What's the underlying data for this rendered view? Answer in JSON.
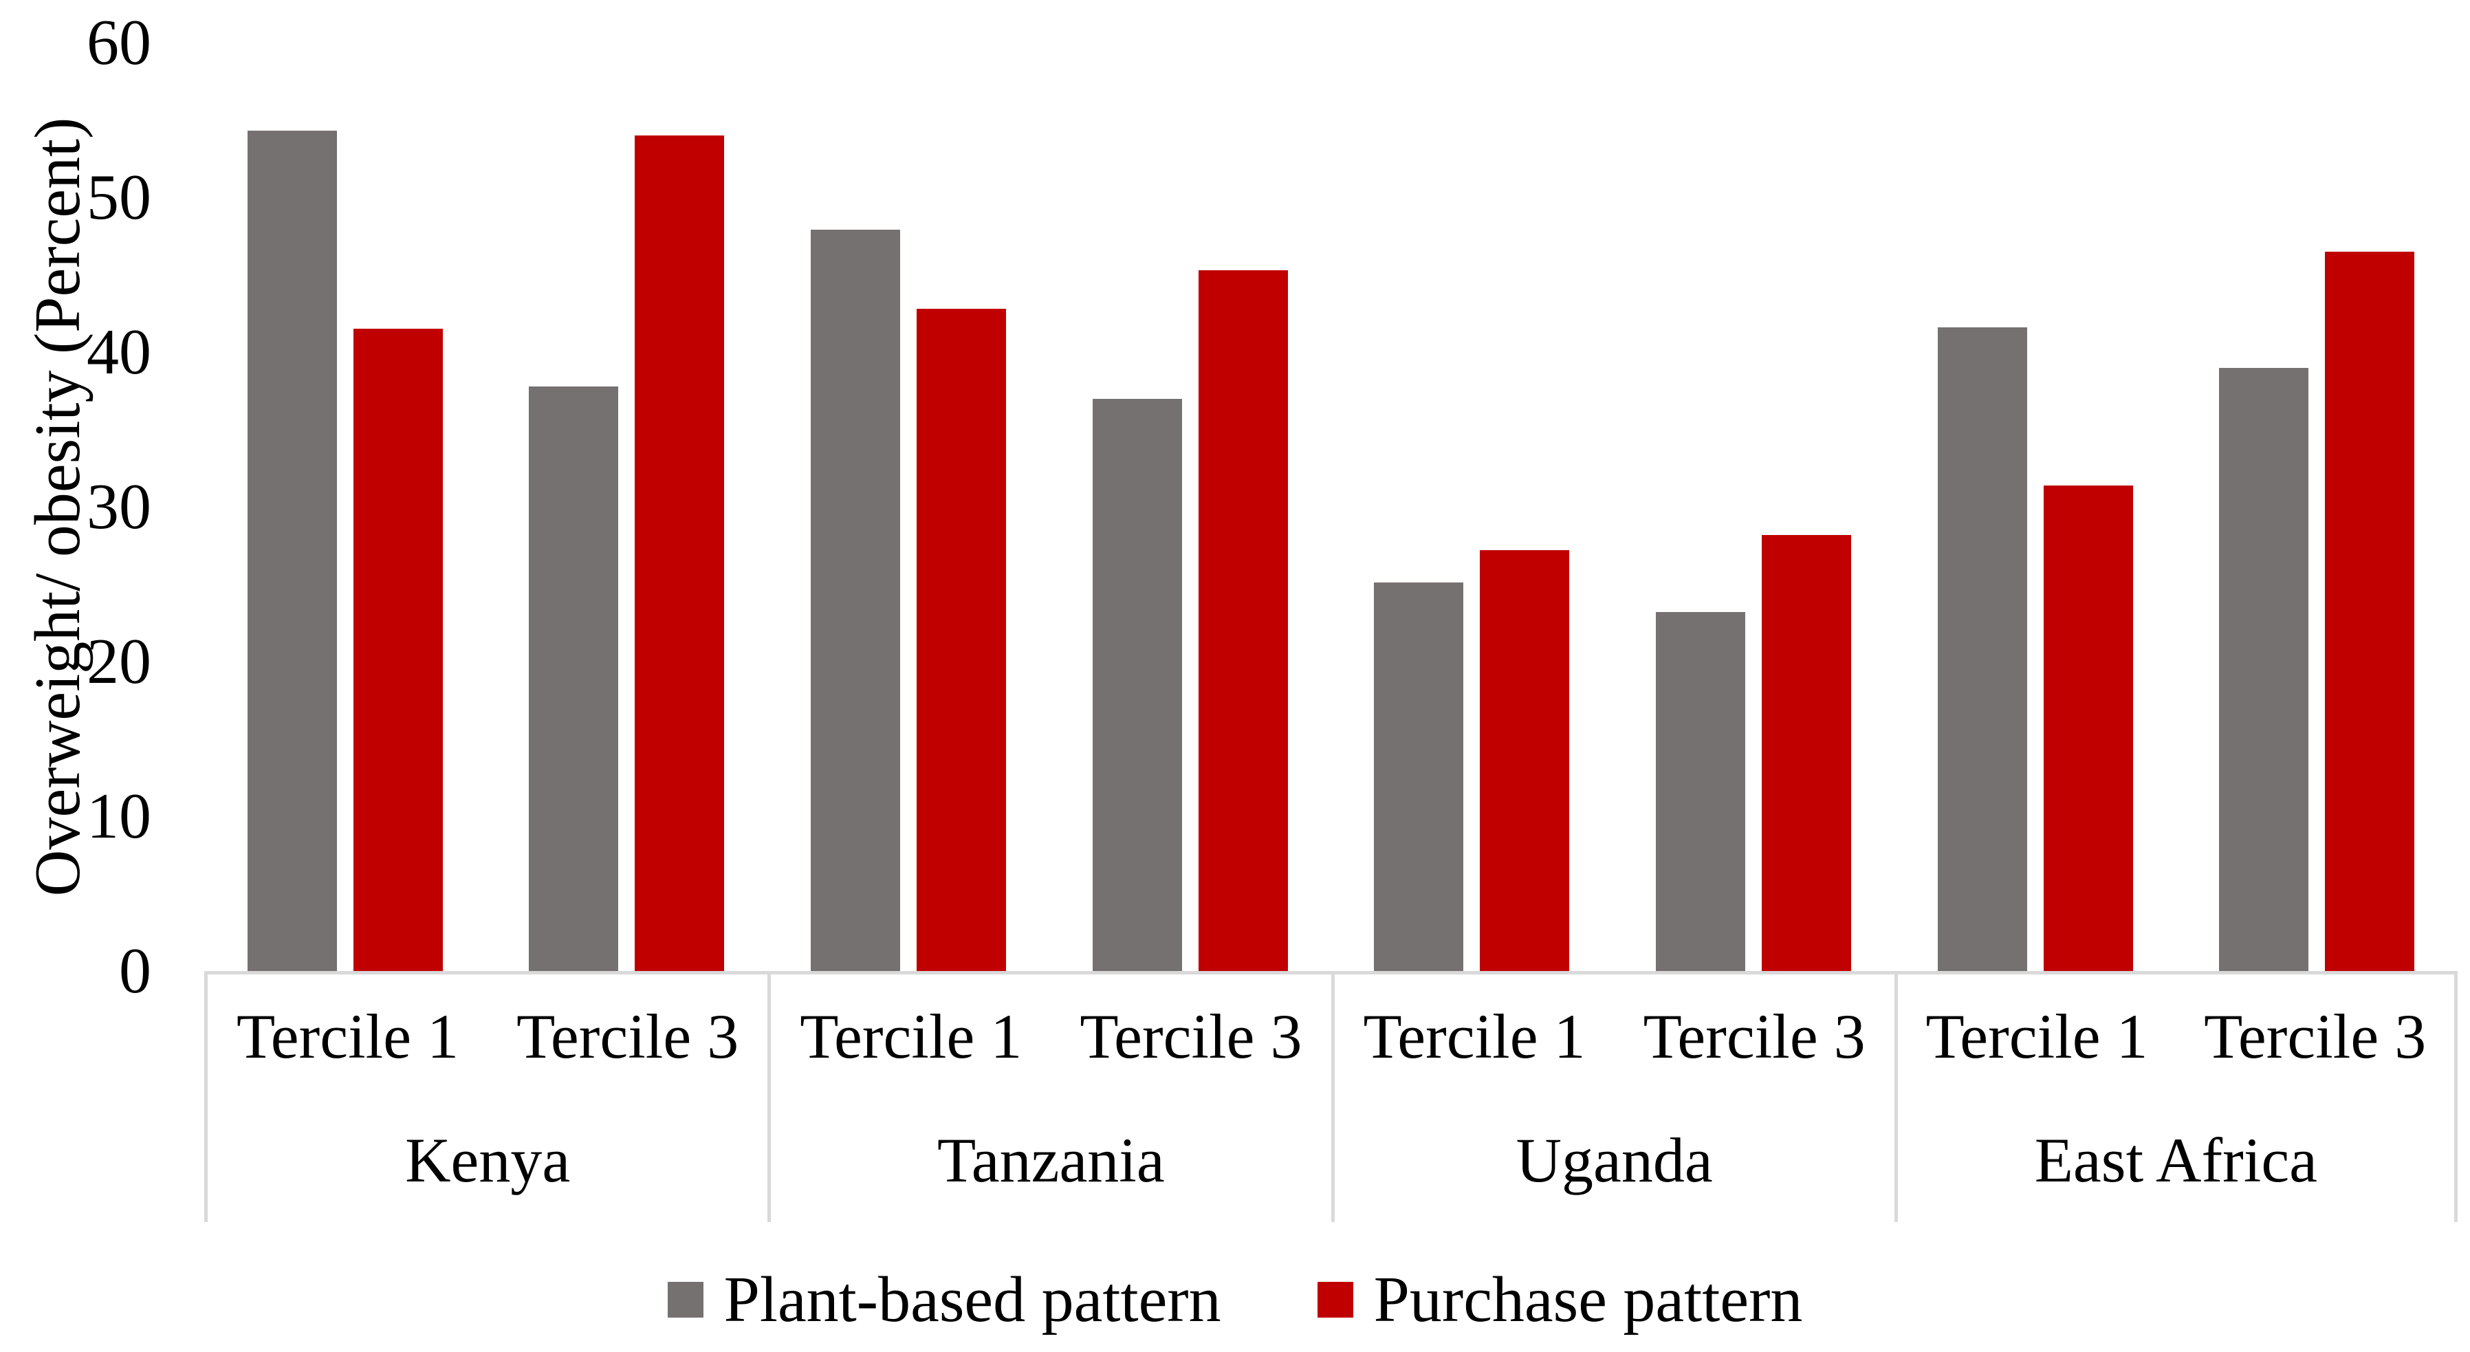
{
  "chart_data": {
    "type": "bar",
    "title": "",
    "ylabel": "Overweight/ obesity (Percent)",
    "ylim": [
      0,
      60
    ],
    "yticks": [
      0,
      10,
      20,
      30,
      40,
      50,
      60
    ],
    "grid": false,
    "legend_position": "bottom-center",
    "axis_line_color": "#D9D9D9",
    "groups": [
      {
        "label": "Kenya",
        "categories": [
          "Tercile 1",
          "Tercile 3"
        ]
      },
      {
        "label": "Tanzania",
        "categories": [
          "Tercile 1",
          "Tercile 3"
        ]
      },
      {
        "label": "Uganda",
        "categories": [
          "Tercile 1",
          "Tercile 3"
        ]
      },
      {
        "label": "East Africa",
        "categories": [
          "Tercile 1",
          "Tercile 3"
        ]
      }
    ],
    "series": [
      {
        "name": "Plant-based pattern",
        "color": "#767171",
        "values": [
          54.3,
          37.8,
          47.9,
          37.0,
          25.1,
          23.2,
          41.6,
          39.0
        ]
      },
      {
        "name": "Purchase pattern",
        "color": "#C00000",
        "values": [
          41.5,
          54.0,
          42.8,
          45.3,
          27.2,
          28.2,
          31.4,
          46.5
        ]
      }
    ]
  }
}
